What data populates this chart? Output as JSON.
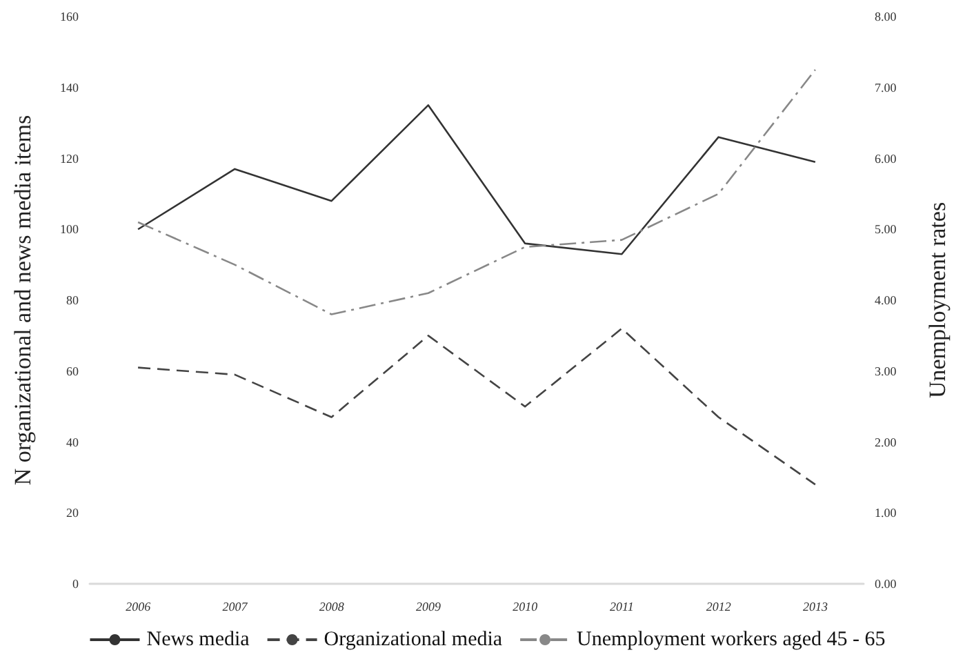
{
  "chart_data": {
    "type": "line",
    "ylabel": "N organizational and news media items",
    "y2label": "Unemployment rates",
    "categories": [
      "2006",
      "2007",
      "2008",
      "2009",
      "2010",
      "2011",
      "2012",
      "2013"
    ],
    "ylim": [
      0,
      160
    ],
    "yticks": [
      0,
      20,
      40,
      60,
      80,
      100,
      120,
      140,
      160
    ],
    "y2lim": [
      0,
      8
    ],
    "y2ticks": [
      {
        "value": 0,
        "label": "0.00"
      },
      {
        "value": 1,
        "label": "1.00"
      },
      {
        "value": 2,
        "label": "2.00"
      },
      {
        "value": 3,
        "label": "3.00"
      },
      {
        "value": 4,
        "label": "4.00"
      },
      {
        "value": 5,
        "label": "5.00"
      },
      {
        "value": 6,
        "label": "6.00"
      },
      {
        "value": 7,
        "label": "7.00"
      },
      {
        "value": 8,
        "label": "8.00"
      }
    ],
    "grid": false,
    "legend": "bottom",
    "marker": "none",
    "series": [
      {
        "name": "News media",
        "color": "#333333",
        "line_style": "solid",
        "values": [
          100,
          117,
          108,
          135,
          96,
          93,
          126,
          119
        ]
      },
      {
        "name": "Organizational media",
        "color": "#444444",
        "line_style": "dashed",
        "values": [
          61,
          59,
          47,
          70,
          50,
          72,
          47,
          28
        ]
      },
      {
        "name": "Unemployment workers aged 45 - 65",
        "color": "#888888",
        "line_style": "dashdot",
        "axis": "y2",
        "values": [
          5.1,
          4.5,
          3.8,
          4.1,
          4.75,
          4.85,
          5.5,
          7.25
        ]
      }
    ]
  }
}
